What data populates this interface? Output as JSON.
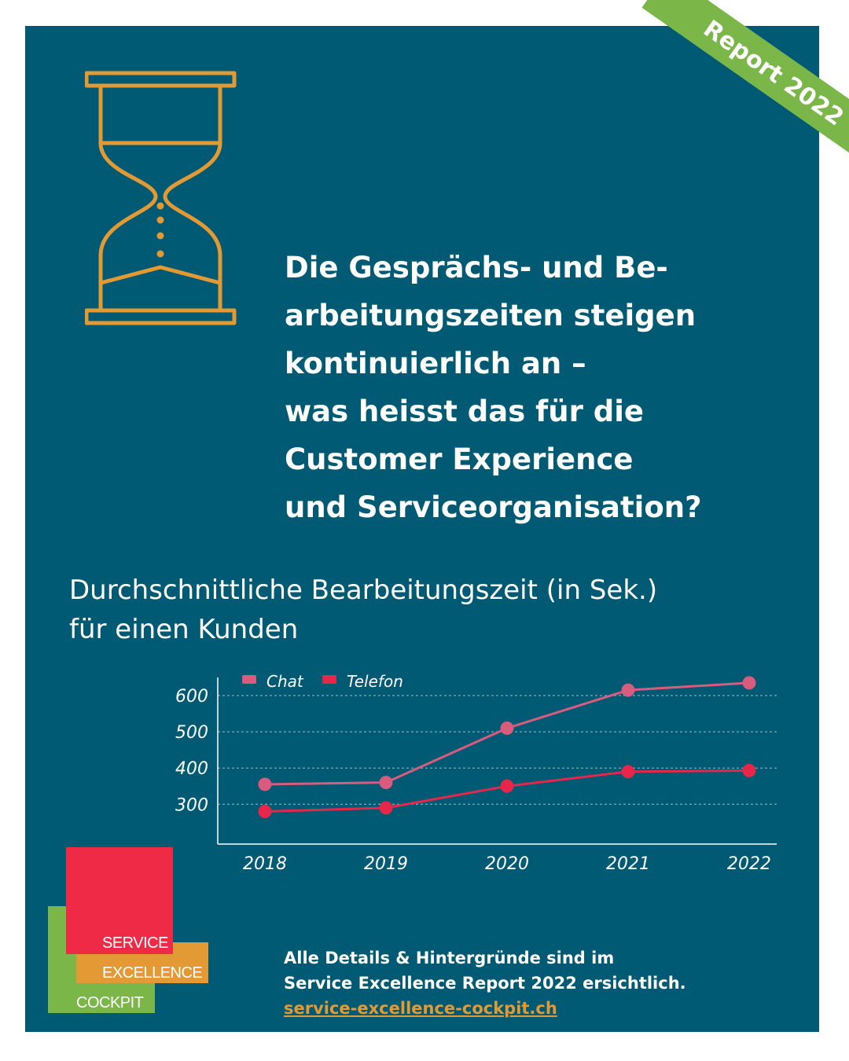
{
  "badge": {
    "text": "Report 2022",
    "color": "#7ab648"
  },
  "headline": {
    "lines": [
      "Die Gesprächs- und Be-",
      "arbeitungszeiten steigen",
      "kontinuierlich an –",
      "was heisst das für die",
      "Customer Experience",
      "und Serviceorganisation?"
    ]
  },
  "icons": {
    "hourglass": "hourglass-icon"
  },
  "chart_data": {
    "type": "line",
    "title": "Durchschnittliche Bearbeitungszeit (in Sek.) für einen Kunden",
    "title_lines": [
      "Durchschnittliche Bearbeitungszeit (in Sek.)",
      "für einen Kunden"
    ],
    "x": [
      "2018",
      "2019",
      "2020",
      "2021",
      "2022"
    ],
    "yticks": [
      300,
      400,
      500,
      600
    ],
    "ylim": [
      190,
      650
    ],
    "grid": true,
    "legend_position": "top-left",
    "series": [
      {
        "name": "Chat",
        "values": [
          355,
          360,
          510,
          615,
          635
        ],
        "color": "#d95b7d"
      },
      {
        "name": "Telefon",
        "values": [
          280,
          290,
          350,
          390,
          393
        ],
        "color": "#e8264a"
      }
    ]
  },
  "logo": {
    "line1": "SERVICE",
    "line2": "EXCELLENCE",
    "line3": "COCKPIT"
  },
  "footer": {
    "line1": "Alle Details & Hintergründe sind im",
    "line2": "Service Excellence Report 2022 ersichtlich.",
    "link": "service-excellence-cockpit.ch"
  },
  "colors": {
    "panel": "#005a73",
    "accent": "#e39a35",
    "red": "#ee2a47",
    "green": "#7ab648"
  }
}
